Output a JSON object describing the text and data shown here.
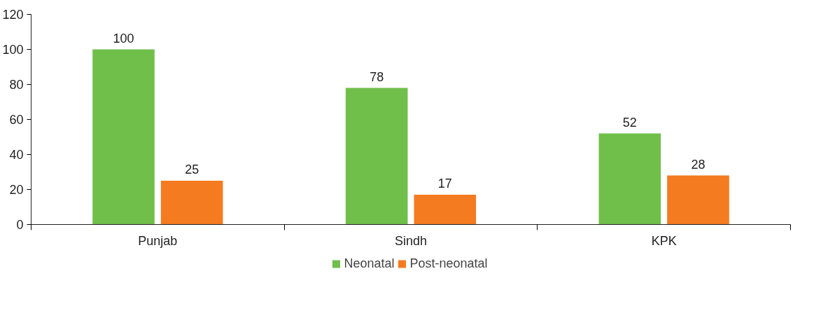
{
  "chart_data": {
    "type": "bar",
    "categories": [
      "Punjab",
      "Sindh",
      "KPK"
    ],
    "series": [
      {
        "name": "Neonatal",
        "color": "#70bf4a",
        "values": [
          100,
          78,
          52
        ]
      },
      {
        "name": "Post-neonatal",
        "color": "#f47b20",
        "values": [
          25,
          17,
          28
        ]
      }
    ],
    "ylim": [
      0,
      120
    ],
    "yticks": [
      0,
      20,
      40,
      60,
      80,
      100,
      120
    ],
    "grid": false,
    "legend": "bottom",
    "data_labels": true
  }
}
